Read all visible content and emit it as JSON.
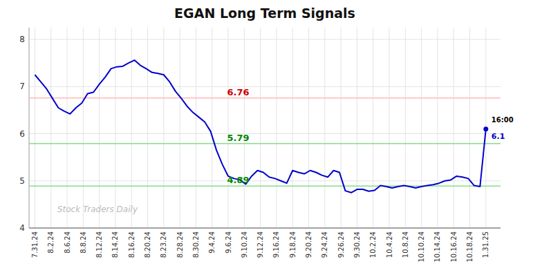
{
  "chart_data": {
    "type": "line",
    "title": "EGAN Long Term Signals",
    "color": "#0000cc",
    "grid": true,
    "x": [
      0,
      1,
      2,
      3,
      4,
      5,
      6,
      7,
      8,
      9,
      10,
      11,
      12,
      13,
      14,
      15,
      16,
      17,
      18,
      19,
      20,
      21,
      22,
      23,
      24,
      25,
      26,
      27,
      28,
      29,
      30,
      31,
      32,
      33,
      34,
      35,
      36,
      37,
      38,
      39,
      40,
      41,
      42,
      43,
      44,
      45,
      46,
      47,
      48,
      49,
      50,
      51,
      52,
      53,
      54,
      55,
      56,
      57,
      58,
      59,
      60,
      61,
      62,
      63,
      64,
      65,
      66,
      67,
      68,
      69,
      70,
      71,
      72,
      73,
      74,
      75,
      76,
      77
    ],
    "values": [
      7.25,
      7.1,
      6.95,
      6.75,
      6.55,
      6.48,
      6.42,
      6.55,
      6.65,
      6.85,
      6.88,
      7.05,
      7.2,
      7.38,
      7.42,
      7.43,
      7.5,
      7.56,
      7.45,
      7.38,
      7.3,
      7.28,
      7.25,
      7.1,
      6.9,
      6.75,
      6.58,
      6.45,
      6.35,
      6.25,
      6.05,
      5.65,
      5.35,
      5.1,
      5.05,
      5.02,
      4.93,
      5.1,
      5.22,
      5.18,
      5.08,
      5.05,
      5.0,
      4.95,
      5.22,
      5.18,
      5.15,
      5.22,
      5.18,
      5.12,
      5.08,
      5.22,
      5.18,
      4.79,
      4.75,
      4.82,
      4.82,
      4.78,
      4.8,
      4.9,
      4.88,
      4.85,
      4.88,
      4.9,
      4.88,
      4.85,
      4.88,
      4.9,
      4.92,
      4.95,
      5.0,
      5.02,
      5.1,
      5.08,
      5.05,
      4.9,
      4.88,
      6.1
    ],
    "xlim": [
      -1,
      79.5
    ],
    "xticks": [
      {
        "value": 0,
        "label": "7.31.24"
      },
      {
        "value": 2.75,
        "label": "8.2.24"
      },
      {
        "value": 5.5,
        "label": "8.6.24"
      },
      {
        "value": 8.25,
        "label": "8.8.24"
      },
      {
        "value": 11,
        "label": "8.12.24"
      },
      {
        "value": 13.75,
        "label": "8.14.24"
      },
      {
        "value": 16.5,
        "label": "8.16.24"
      },
      {
        "value": 19.25,
        "label": "8.20.24"
      },
      {
        "value": 22,
        "label": "8.23.24"
      },
      {
        "value": 24.75,
        "label": "8.28.24"
      },
      {
        "value": 27.5,
        "label": "8.30.24"
      },
      {
        "value": 30.25,
        "label": "9.4.24"
      },
      {
        "value": 33,
        "label": "9.6.24"
      },
      {
        "value": 35.75,
        "label": "9.10.24"
      },
      {
        "value": 38.5,
        "label": "9.12.24"
      },
      {
        "value": 41.25,
        "label": "9.16.24"
      },
      {
        "value": 44,
        "label": "9.18.24"
      },
      {
        "value": 46.75,
        "label": "9.20.24"
      },
      {
        "value": 49.5,
        "label": "9.24.24"
      },
      {
        "value": 52.25,
        "label": "9.26.24"
      },
      {
        "value": 55,
        "label": "9.30.24"
      },
      {
        "value": 57.75,
        "label": "10.2.24"
      },
      {
        "value": 60.5,
        "label": "10.4.24"
      },
      {
        "value": 63.25,
        "label": "10.8.24"
      },
      {
        "value": 66,
        "label": "10.10.24"
      },
      {
        "value": 68.75,
        "label": "10.14.24"
      },
      {
        "value": 71.5,
        "label": "10.16.24"
      },
      {
        "value": 74.25,
        "label": "10.18.24"
      },
      {
        "value": 77,
        "label": "1.31.25"
      }
    ],
    "ylim": [
      4.0,
      8.25
    ],
    "yticks": [
      4,
      5,
      6,
      7,
      8
    ],
    "reference_lines": [
      {
        "value": 6.76,
        "label": "6.76",
        "color": "#ffbbbb",
        "label_color": "#cc0000"
      },
      {
        "value": 5.79,
        "label": "5.79",
        "color": "#88dd88",
        "label_color": "#008800"
      },
      {
        "value": 4.89,
        "label": "4.89",
        "color": "#88dd88",
        "label_color": "#008800"
      }
    ],
    "last_point": {
      "x": 77,
      "y": 6.1,
      "time": "16:00",
      "color": "#0000cc"
    },
    "watermark": "Stock Traders Daily"
  }
}
